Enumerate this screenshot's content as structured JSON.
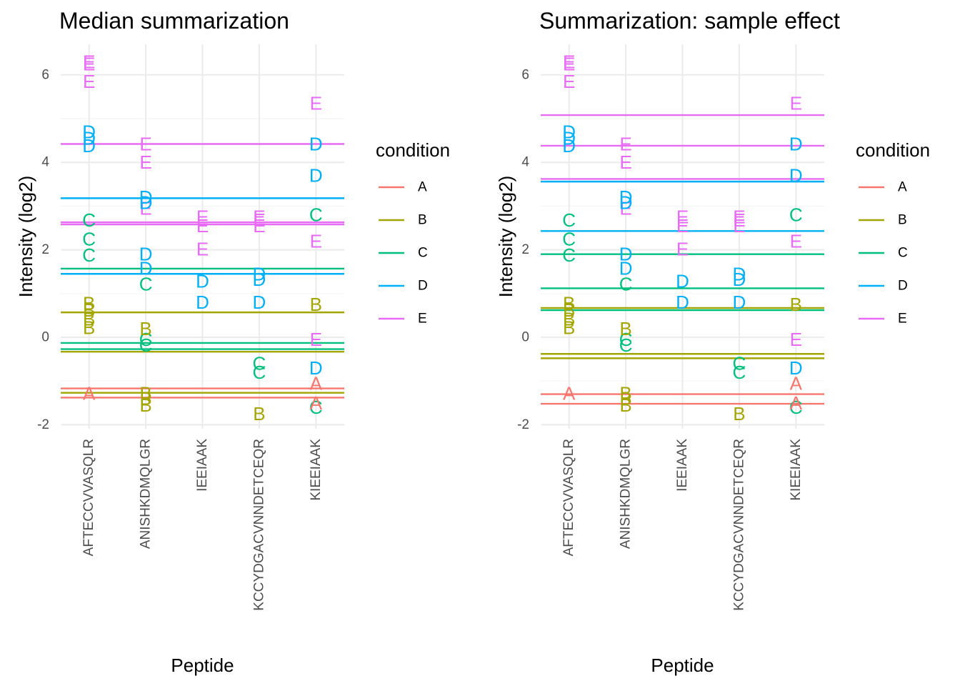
{
  "colors": {
    "A": "#F8766D",
    "B": "#A3A500",
    "C": "#00BF7D",
    "D": "#00B0F6",
    "E": "#E76BF3",
    "grid_major": "#EBEBEB",
    "grid_minor": "#F5F5F5",
    "tick_text": "#4D4D4D"
  },
  "chart_data": [
    {
      "type": "scatter",
      "title": "Median summarization",
      "xlabel": "Peptide",
      "ylabel": "Intensity (log2)",
      "categories": [
        "AFTECCVVASQLR",
        "ANISHKDMQLGR",
        "IEEIAAK",
        "KCCYDGACVNNDETCEQR",
        "KIEEIAAK"
      ],
      "yticks": [
        -2,
        0,
        2,
        4,
        6
      ],
      "ylim": [
        -2.2,
        6.7
      ],
      "grid": true,
      "legend": {
        "title": "condition",
        "position": "right",
        "entries": [
          "A",
          "B",
          "C",
          "D",
          "E"
        ]
      },
      "points": [
        {
          "x": "AFTECCVVASQLR",
          "y": -1.28,
          "label": "A"
        },
        {
          "x": "AFTECCVVASQLR",
          "y": 0.22,
          "label": "B"
        },
        {
          "x": "AFTECCVVASQLR",
          "y": 0.42,
          "label": "B"
        },
        {
          "x": "AFTECCVVASQLR",
          "y": 0.62,
          "label": "B"
        },
        {
          "x": "AFTECCVVASQLR",
          "y": 0.78,
          "label": "B"
        },
        {
          "x": "AFTECCVVASQLR",
          "y": 1.88,
          "label": "C"
        },
        {
          "x": "AFTECCVVASQLR",
          "y": 2.25,
          "label": "C"
        },
        {
          "x": "AFTECCVVASQLR",
          "y": 2.68,
          "label": "C"
        },
        {
          "x": "AFTECCVVASQLR",
          "y": 4.38,
          "label": "D"
        },
        {
          "x": "AFTECCVVASQLR",
          "y": 4.55,
          "label": "D"
        },
        {
          "x": "AFTECCVVASQLR",
          "y": 4.7,
          "label": "D"
        },
        {
          "x": "AFTECCVVASQLR",
          "y": 5.85,
          "label": "E"
        },
        {
          "x": "AFTECCVVASQLR",
          "y": 6.25,
          "label": "E"
        },
        {
          "x": "AFTECCVVASQLR",
          "y": 6.3,
          "label": "E"
        },
        {
          "x": "ANISHKDMQLGR",
          "y": -1.55,
          "label": "B"
        },
        {
          "x": "ANISHKDMQLGR",
          "y": -1.4,
          "label": "B"
        },
        {
          "x": "ANISHKDMQLGR",
          "y": -1.28,
          "label": "B"
        },
        {
          "x": "ANISHKDMQLGR",
          "y": -0.18,
          "label": "C"
        },
        {
          "x": "ANISHKDMQLGR",
          "y": -0.05,
          "label": "C"
        },
        {
          "x": "ANISHKDMQLGR",
          "y": 0.2,
          "label": "B"
        },
        {
          "x": "ANISHKDMQLGR",
          "y": 1.22,
          "label": "C"
        },
        {
          "x": "ANISHKDMQLGR",
          "y": 1.58,
          "label": "D"
        },
        {
          "x": "ANISHKDMQLGR",
          "y": 1.9,
          "label": "D"
        },
        {
          "x": "ANISHKDMQLGR",
          "y": 2.95,
          "label": "E"
        },
        {
          "x": "ANISHKDMQLGR",
          "y": 3.08,
          "label": "D"
        },
        {
          "x": "ANISHKDMQLGR",
          "y": 3.2,
          "label": "D"
        },
        {
          "x": "ANISHKDMQLGR",
          "y": 4.0,
          "label": "E"
        },
        {
          "x": "ANISHKDMQLGR",
          "y": 4.42,
          "label": "E"
        },
        {
          "x": "IEEIAAK",
          "y": 0.8,
          "label": "D"
        },
        {
          "x": "IEEIAAK",
          "y": 1.28,
          "label": "D"
        },
        {
          "x": "IEEIAAK",
          "y": 2.02,
          "label": "E"
        },
        {
          "x": "IEEIAAK",
          "y": 2.55,
          "label": "E"
        },
        {
          "x": "IEEIAAK",
          "y": 2.75,
          "label": "E"
        },
        {
          "x": "KCCYDGACVNNDETCEQR",
          "y": -1.75,
          "label": "B"
        },
        {
          "x": "KCCYDGACVNNDETCEQR",
          "y": -0.8,
          "label": "C"
        },
        {
          "x": "KCCYDGACVNNDETCEQR",
          "y": -0.6,
          "label": "C"
        },
        {
          "x": "KCCYDGACVNNDETCEQR",
          "y": 0.8,
          "label": "D"
        },
        {
          "x": "KCCYDGACVNNDETCEQR",
          "y": 1.32,
          "label": "D"
        },
        {
          "x": "KCCYDGACVNNDETCEQR",
          "y": 1.45,
          "label": "D"
        },
        {
          "x": "KCCYDGACVNNDETCEQR",
          "y": 2.55,
          "label": "E"
        },
        {
          "x": "KCCYDGACVNNDETCEQR",
          "y": 2.68,
          "label": "E"
        },
        {
          "x": "KCCYDGACVNNDETCEQR",
          "y": 2.75,
          "label": "E"
        },
        {
          "x": "KIEEIAAK",
          "y": -1.6,
          "label": "C"
        },
        {
          "x": "KIEEIAAK",
          "y": -1.5,
          "label": "A"
        },
        {
          "x": "KIEEIAAK",
          "y": -1.05,
          "label": "A"
        },
        {
          "x": "KIEEIAAK",
          "y": -0.7,
          "label": "D"
        },
        {
          "x": "KIEEIAAK",
          "y": -0.05,
          "label": "E"
        },
        {
          "x": "KIEEIAAK",
          "y": 0.75,
          "label": "B"
        },
        {
          "x": "KIEEIAAK",
          "y": 2.2,
          "label": "E"
        },
        {
          "x": "KIEEIAAK",
          "y": 2.8,
          "label": "C"
        },
        {
          "x": "KIEEIAAK",
          "y": 3.7,
          "label": "D"
        },
        {
          "x": "KIEEIAAK",
          "y": 4.42,
          "label": "D"
        },
        {
          "x": "KIEEIAAK",
          "y": 5.35,
          "label": "E"
        }
      ],
      "hlines": [
        {
          "condition": "A",
          "y": -1.17
        },
        {
          "condition": "A",
          "y": -1.38
        },
        {
          "condition": "B",
          "y": 0.57
        },
        {
          "condition": "B",
          "y": -0.33
        },
        {
          "condition": "B",
          "y": -1.27
        },
        {
          "condition": "C",
          "y": 1.57
        },
        {
          "condition": "C",
          "y": -0.13
        },
        {
          "condition": "C",
          "y": -0.27
        },
        {
          "condition": "D",
          "y": 3.18
        },
        {
          "condition": "D",
          "y": 1.45
        },
        {
          "condition": "E",
          "y": 4.42
        },
        {
          "condition": "E",
          "y": 2.63
        },
        {
          "condition": "E",
          "y": 2.58
        }
      ]
    },
    {
      "type": "scatter",
      "title": "Summarization: sample effect",
      "xlabel": "Peptide",
      "ylabel": "Intensity (log2)",
      "categories": [
        "AFTECCVVASQLR",
        "ANISHKDMQLGR",
        "IEEIAAK",
        "KCCYDGACVNNDETCEQR",
        "KIEEIAAK"
      ],
      "yticks": [
        -2,
        0,
        2,
        4,
        6
      ],
      "ylim": [
        -2.2,
        6.7
      ],
      "grid": true,
      "legend": {
        "title": "condition",
        "position": "right",
        "entries": [
          "A",
          "B",
          "C",
          "D",
          "E"
        ]
      },
      "points": [
        {
          "x": "AFTECCVVASQLR",
          "y": -1.28,
          "label": "A"
        },
        {
          "x": "AFTECCVVASQLR",
          "y": 0.22,
          "label": "B"
        },
        {
          "x": "AFTECCVVASQLR",
          "y": 0.42,
          "label": "B"
        },
        {
          "x": "AFTECCVVASQLR",
          "y": 0.62,
          "label": "B"
        },
        {
          "x": "AFTECCVVASQLR",
          "y": 0.78,
          "label": "B"
        },
        {
          "x": "AFTECCVVASQLR",
          "y": 1.88,
          "label": "C"
        },
        {
          "x": "AFTECCVVASQLR",
          "y": 2.25,
          "label": "C"
        },
        {
          "x": "AFTECCVVASQLR",
          "y": 2.68,
          "label": "C"
        },
        {
          "x": "AFTECCVVASQLR",
          "y": 4.38,
          "label": "D"
        },
        {
          "x": "AFTECCVVASQLR",
          "y": 4.55,
          "label": "D"
        },
        {
          "x": "AFTECCVVASQLR",
          "y": 4.7,
          "label": "D"
        },
        {
          "x": "AFTECCVVASQLR",
          "y": 5.85,
          "label": "E"
        },
        {
          "x": "AFTECCVVASQLR",
          "y": 6.25,
          "label": "E"
        },
        {
          "x": "AFTECCVVASQLR",
          "y": 6.3,
          "label": "E"
        },
        {
          "x": "ANISHKDMQLGR",
          "y": -1.55,
          "label": "B"
        },
        {
          "x": "ANISHKDMQLGR",
          "y": -1.4,
          "label": "B"
        },
        {
          "x": "ANISHKDMQLGR",
          "y": -1.28,
          "label": "B"
        },
        {
          "x": "ANISHKDMQLGR",
          "y": -0.18,
          "label": "C"
        },
        {
          "x": "ANISHKDMQLGR",
          "y": -0.05,
          "label": "C"
        },
        {
          "x": "ANISHKDMQLGR",
          "y": 0.2,
          "label": "B"
        },
        {
          "x": "ANISHKDMQLGR",
          "y": 1.22,
          "label": "C"
        },
        {
          "x": "ANISHKDMQLGR",
          "y": 1.58,
          "label": "D"
        },
        {
          "x": "ANISHKDMQLGR",
          "y": 1.9,
          "label": "D"
        },
        {
          "x": "ANISHKDMQLGR",
          "y": 2.95,
          "label": "E"
        },
        {
          "x": "ANISHKDMQLGR",
          "y": 3.08,
          "label": "D"
        },
        {
          "x": "ANISHKDMQLGR",
          "y": 3.2,
          "label": "D"
        },
        {
          "x": "ANISHKDMQLGR",
          "y": 4.0,
          "label": "E"
        },
        {
          "x": "ANISHKDMQLGR",
          "y": 4.42,
          "label": "E"
        },
        {
          "x": "IEEIAAK",
          "y": 0.8,
          "label": "D"
        },
        {
          "x": "IEEIAAK",
          "y": 1.28,
          "label": "D"
        },
        {
          "x": "IEEIAAK",
          "y": 2.02,
          "label": "E"
        },
        {
          "x": "IEEIAAK",
          "y": 2.55,
          "label": "E"
        },
        {
          "x": "IEEIAAK",
          "y": 2.75,
          "label": "E"
        },
        {
          "x": "KCCYDGACVNNDETCEQR",
          "y": -1.75,
          "label": "B"
        },
        {
          "x": "KCCYDGACVNNDETCEQR",
          "y": -0.8,
          "label": "C"
        },
        {
          "x": "KCCYDGACVNNDETCEQR",
          "y": -0.6,
          "label": "C"
        },
        {
          "x": "KCCYDGACVNNDETCEQR",
          "y": 0.8,
          "label": "D"
        },
        {
          "x": "KCCYDGACVNNDETCEQR",
          "y": 1.32,
          "label": "D"
        },
        {
          "x": "KCCYDGACVNNDETCEQR",
          "y": 1.45,
          "label": "D"
        },
        {
          "x": "KCCYDGACVNNDETCEQR",
          "y": 2.55,
          "label": "E"
        },
        {
          "x": "KCCYDGACVNNDETCEQR",
          "y": 2.68,
          "label": "E"
        },
        {
          "x": "KCCYDGACVNNDETCEQR",
          "y": 2.75,
          "label": "E"
        },
        {
          "x": "KIEEIAAK",
          "y": -1.6,
          "label": "C"
        },
        {
          "x": "KIEEIAAK",
          "y": -1.5,
          "label": "A"
        },
        {
          "x": "KIEEIAAK",
          "y": -1.05,
          "label": "A"
        },
        {
          "x": "KIEEIAAK",
          "y": -0.7,
          "label": "D"
        },
        {
          "x": "KIEEIAAK",
          "y": -0.05,
          "label": "E"
        },
        {
          "x": "KIEEIAAK",
          "y": 0.75,
          "label": "B"
        },
        {
          "x": "KIEEIAAK",
          "y": 2.2,
          "label": "E"
        },
        {
          "x": "KIEEIAAK",
          "y": 2.8,
          "label": "C"
        },
        {
          "x": "KIEEIAAK",
          "y": 3.7,
          "label": "D"
        },
        {
          "x": "KIEEIAAK",
          "y": 4.42,
          "label": "D"
        },
        {
          "x": "KIEEIAAK",
          "y": 5.35,
          "label": "E"
        }
      ],
      "hlines": [
        {
          "condition": "A",
          "y": -1.3
        },
        {
          "condition": "A",
          "y": -1.52
        },
        {
          "condition": "B",
          "y": 0.67
        },
        {
          "condition": "B",
          "y": -0.38
        },
        {
          "condition": "B",
          "y": -0.48
        },
        {
          "condition": "C",
          "y": 1.9
        },
        {
          "condition": "C",
          "y": 1.12
        },
        {
          "condition": "C",
          "y": 0.62
        },
        {
          "condition": "D",
          "y": 3.56
        },
        {
          "condition": "D",
          "y": 2.43
        },
        {
          "condition": "E",
          "y": 5.08
        },
        {
          "condition": "E",
          "y": 4.38
        },
        {
          "condition": "E",
          "y": 3.62
        }
      ]
    }
  ]
}
